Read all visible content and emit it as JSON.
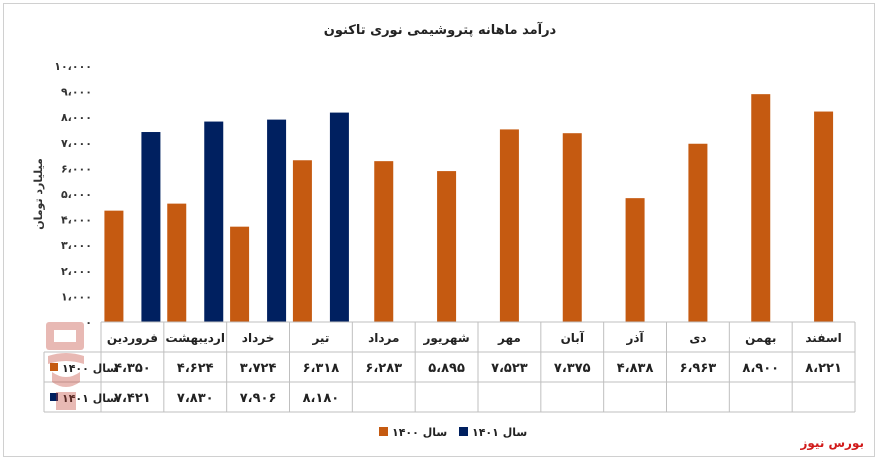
{
  "chart_data": {
    "type": "bar",
    "title": "درآمد ماهانه پتروشیمی نوری تاکنون",
    "ylabel": "میلیارد تومان",
    "xlabel": "",
    "ylim": [
      0,
      10000
    ],
    "yticks": [
      "۱۰،۰۰۰",
      "۹،۰۰۰",
      "۸،۰۰۰",
      "۷،۰۰۰",
      "۶،۰۰۰",
      "۵،۰۰۰",
      "۴،۰۰۰",
      "۳،۰۰۰",
      "۲،۰۰۰",
      "۱،۰۰۰",
      "۰"
    ],
    "categories": [
      "فروردین",
      "اردیبهشت",
      "خرداد",
      "تیر",
      "مرداد",
      "شهریور",
      "مهر",
      "آبان",
      "آذر",
      "دی",
      "بهمن",
      "اسفند"
    ],
    "series": [
      {
        "name": "سال ۱۴۰۰",
        "color": "#C55A11",
        "values": [
          4350,
          4624,
          3724,
          6318,
          6283,
          5895,
          7523,
          7375,
          4838,
          6963,
          8900,
          8221
        ],
        "labels": [
          "۴،۳۵۰",
          "۴،۶۲۴",
          "۳،۷۲۴",
          "۶،۳۱۸",
          "۶،۲۸۳",
          "۵،۸۹۵",
          "۷،۵۲۳",
          "۷،۳۷۵",
          "۴،۸۳۸",
          "۶،۹۶۳",
          "۸،۹۰۰",
          "۸،۲۲۱"
        ]
      },
      {
        "name": "سال ۱۴۰۱",
        "color": "#002060",
        "values": [
          7421,
          7830,
          7906,
          8180,
          null,
          null,
          null,
          null,
          null,
          null,
          null,
          null
        ],
        "labels": [
          "۷،۴۲۱",
          "۷،۸۳۰",
          "۷،۹۰۶",
          "۸،۱۸۰",
          "",
          "",
          "",
          "",
          "",
          "",
          "",
          ""
        ]
      }
    ],
    "legend_position": "bottom",
    "grid": false
  },
  "brand": "بورس نیوز"
}
